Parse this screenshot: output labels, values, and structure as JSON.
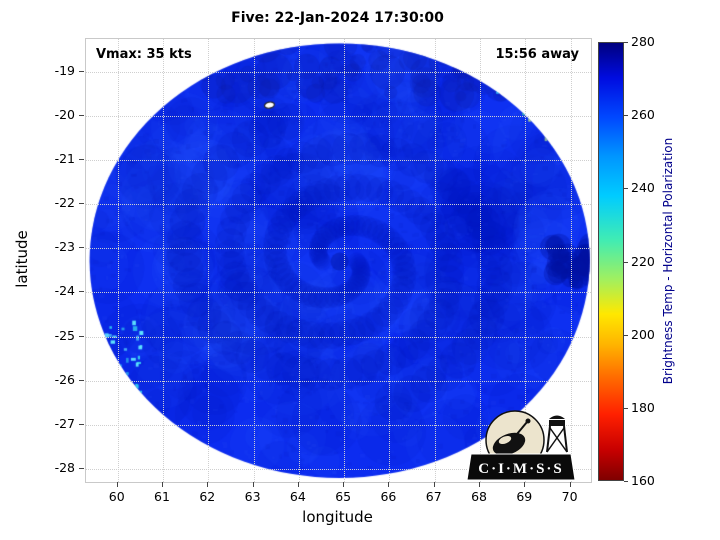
{
  "logo": {
    "text": "C·I·M·S·S"
  },
  "chart_data": {
    "type": "heatmap",
    "title": "Five: 22-Jan-2024 17:30:00",
    "xlabel": "longitude",
    "ylabel": "latitude",
    "xlim": [
      59.3,
      70.45
    ],
    "ylim": [
      -28.3,
      -18.25
    ],
    "x_ticks": [
      60,
      61,
      62,
      63,
      64,
      65,
      66,
      67,
      68,
      69,
      70
    ],
    "y_ticks": [
      -19,
      -20,
      -21,
      -22,
      -23,
      -24,
      -25,
      -26,
      -27,
      -28
    ],
    "grid": "dotted",
    "legend": "none",
    "annotations": [
      "Vmax: 35 kts",
      "15:56 away"
    ],
    "colorbar": {
      "label": "Brightness Temp - Horizontal Polarization",
      "range": [
        160,
        280
      ],
      "ticks": [
        160,
        180,
        200,
        220,
        240,
        260,
        280
      ],
      "colormap": "jet_reversed",
      "position": "right"
    },
    "swath": {
      "shape": "ellipse",
      "center_lon": 64.9,
      "center_lat": -23.28,
      "radius_lon_deg": 5.52,
      "radius_lat_deg": 4.93,
      "background_value": 262,
      "value_range_dominant": [
        248,
        278
      ]
    },
    "features": [
      {
        "name": "eye-region",
        "lon": 64.9,
        "lat": -23.3,
        "value": 275
      },
      {
        "name": "spiral-rainbands",
        "center_lon": 64.9,
        "center_lat": -23.3,
        "turns": 1.7,
        "value": 272
      },
      {
        "name": "upper-right-speckled-swath-edge",
        "lon_range": [
          67.2,
          70.4
        ],
        "lat_range": [
          -21.2,
          -18.5
        ],
        "value_range": [
          225,
          255
        ]
      },
      {
        "name": "right-edge-dark-patch",
        "lon_range": [
          69.6,
          70.4
        ],
        "lat_range": [
          -23.8,
          -22.9
        ],
        "value": 279
      },
      {
        "name": "left-edge-speckles",
        "lon_range": [
          59.4,
          60.6
        ],
        "lat_range": [
          -26.4,
          -24.6
        ],
        "value_range": [
          235,
          250
        ]
      },
      {
        "name": "white-contour-marker",
        "lon": 63.35,
        "lat": -19.75
      }
    ]
  }
}
